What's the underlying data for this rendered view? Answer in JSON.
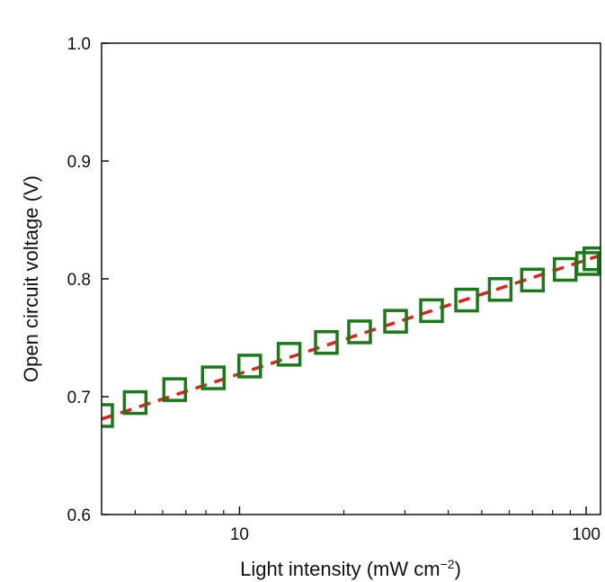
{
  "chart_data": {
    "type": "scatter",
    "xlabel": "Light intensity (mW cm",
    "xlabel_superscript": "−2",
    "xlabel_suffix": ")",
    "ylabel": "Open circuit voltage (V)",
    "x_scale": "log",
    "xlim": [
      4.0,
      110.0
    ],
    "ylim": [
      0.6,
      1.0
    ],
    "x_ticks": [
      {
        "value": 10,
        "label": "10"
      },
      {
        "value": 100,
        "label": "100"
      }
    ],
    "y_ticks": [
      {
        "value": 0.6,
        "label": "0.6"
      },
      {
        "value": 0.7,
        "label": "0.7"
      },
      {
        "value": 0.8,
        "label": "0.8"
      },
      {
        "value": 0.9,
        "label": "0.9"
      },
      {
        "value": 1.0,
        "label": "1.0"
      }
    ],
    "series": [
      {
        "marker": "open-square",
        "color": "#1a7a1a",
        "x": [
          4.0,
          5.0,
          6.5,
          8.4,
          10.7,
          13.9,
          17.8,
          22.2,
          28.2,
          35.8,
          45.2,
          56.5,
          70.0,
          87.0,
          101.0,
          106.0
        ],
        "y": [
          0.684,
          0.695,
          0.706,
          0.716,
          0.726,
          0.736,
          0.746,
          0.755,
          0.764,
          0.773,
          0.782,
          0.791,
          0.799,
          0.808,
          0.813,
          0.817
        ]
      }
    ],
    "fit_line": {
      "style": "dashed",
      "color": "#e0211b",
      "x": [
        4.0,
        110.0
      ],
      "y": [
        0.681,
        0.82
      ]
    },
    "grid": false,
    "legend": "none"
  }
}
